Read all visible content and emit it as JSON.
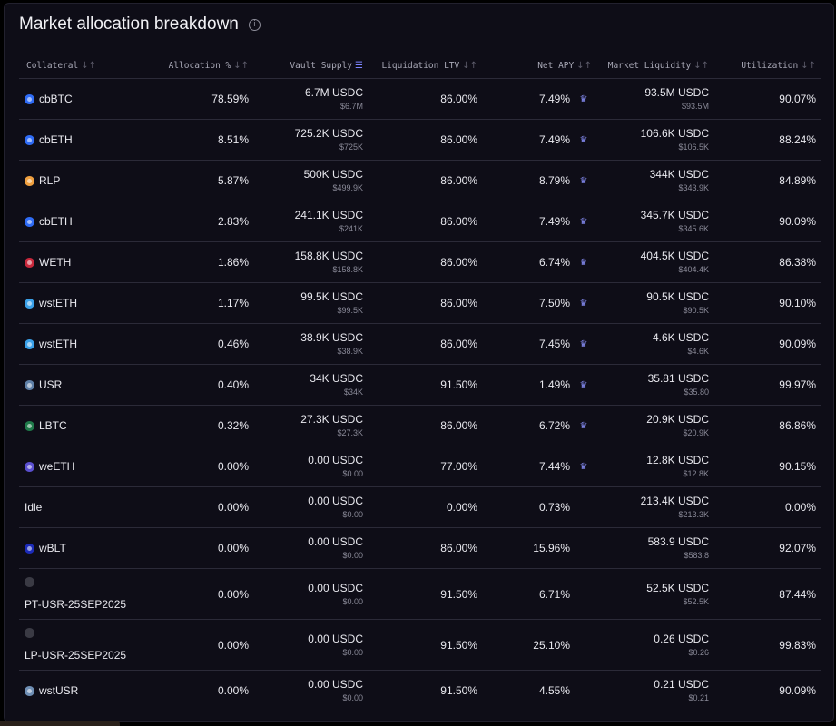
{
  "header": {
    "title": "Market allocation breakdown",
    "info_icon": "info-icon"
  },
  "columns": [
    {
      "label": "Collateral"
    },
    {
      "label": "Allocation %"
    },
    {
      "label": "Vault Supply"
    },
    {
      "label": "Liquidation LTV"
    },
    {
      "label": "Net APY"
    },
    {
      "label": "Market Liquidity"
    },
    {
      "label": "Utilization"
    }
  ],
  "rows": [
    {
      "collateral": "cbBTC",
      "icon_color": "#2f6cf6",
      "allocation": "78.59%",
      "supply": "6.7M USDC",
      "supply_usd": "$6.7M",
      "ltv": "86.00%",
      "apy": "7.49%",
      "reward": true,
      "liquidity": "93.5M USDC",
      "liquidity_usd": "$93.5M",
      "utilization": "90.07%"
    },
    {
      "collateral": "cbETH",
      "icon_color": "#2f6cf6",
      "allocation": "8.51%",
      "supply": "725.2K USDC",
      "supply_usd": "$725K",
      "ltv": "86.00%",
      "apy": "7.49%",
      "reward": true,
      "liquidity": "106.6K USDC",
      "liquidity_usd": "$106.5K",
      "utilization": "88.24%"
    },
    {
      "collateral": "RLP",
      "icon_color": "#f0a040",
      "allocation": "5.87%",
      "supply": "500K USDC",
      "supply_usd": "$499.9K",
      "ltv": "86.00%",
      "apy": "8.79%",
      "reward": true,
      "liquidity": "344K USDC",
      "liquidity_usd": "$343.9K",
      "utilization": "84.89%"
    },
    {
      "collateral": "cbETH",
      "icon_color": "#2f6cf6",
      "allocation": "2.83%",
      "supply": "241.1K USDC",
      "supply_usd": "$241K",
      "ltv": "86.00%",
      "apy": "7.49%",
      "reward": true,
      "liquidity": "345.7K USDC",
      "liquidity_usd": "$345.6K",
      "utilization": "90.09%"
    },
    {
      "collateral": "WETH",
      "icon_color": "#c8283c",
      "allocation": "1.86%",
      "supply": "158.8K USDC",
      "supply_usd": "$158.8K",
      "ltv": "86.00%",
      "apy": "6.74%",
      "reward": true,
      "liquidity": "404.5K USDC",
      "liquidity_usd": "$404.4K",
      "utilization": "86.38%"
    },
    {
      "collateral": "wstETH",
      "icon_color": "#3aa0e8",
      "allocation": "1.17%",
      "supply": "99.5K USDC",
      "supply_usd": "$99.5K",
      "ltv": "86.00%",
      "apy": "7.50%",
      "reward": true,
      "liquidity": "90.5K USDC",
      "liquidity_usd": "$90.5K",
      "utilization": "90.10%"
    },
    {
      "collateral": "wstETH",
      "icon_color": "#3aa0e8",
      "allocation": "0.46%",
      "supply": "38.9K USDC",
      "supply_usd": "$38.9K",
      "ltv": "86.00%",
      "apy": "7.45%",
      "reward": true,
      "liquidity": "4.6K USDC",
      "liquidity_usd": "$4.6K",
      "utilization": "90.09%"
    },
    {
      "collateral": "USR",
      "icon_color": "#5e7fa6",
      "allocation": "0.40%",
      "supply": "34K USDC",
      "supply_usd": "$34K",
      "ltv": "91.50%",
      "apy": "1.49%",
      "reward": true,
      "liquidity": "35.81 USDC",
      "liquidity_usd": "$35.80",
      "utilization": "99.97%"
    },
    {
      "collateral": "LBTC",
      "icon_color": "#1f7a4a",
      "allocation": "0.32%",
      "supply": "27.3K USDC",
      "supply_usd": "$27.3K",
      "ltv": "86.00%",
      "apy": "6.72%",
      "reward": true,
      "liquidity": "20.9K USDC",
      "liquidity_usd": "$20.9K",
      "utilization": "86.86%"
    },
    {
      "collateral": "weETH",
      "icon_color": "#5a4fcf",
      "allocation": "0.00%",
      "supply": "0.00 USDC",
      "supply_usd": "$0.00",
      "ltv": "77.00%",
      "apy": "7.44%",
      "reward": true,
      "liquidity": "12.8K USDC",
      "liquidity_usd": "$12.8K",
      "utilization": "90.15%"
    },
    {
      "collateral": "Idle",
      "icon_color": "",
      "allocation": "0.00%",
      "supply": "0.00 USDC",
      "supply_usd": "$0.00",
      "ltv": "0.00%",
      "apy": "0.73%",
      "reward": false,
      "liquidity": "213.4K USDC",
      "liquidity_usd": "$213.3K",
      "utilization": "0.00%"
    },
    {
      "collateral": "wBLT",
      "icon_color": "#1c2bb8",
      "allocation": "0.00%",
      "supply": "0.00 USDC",
      "supply_usd": "$0.00",
      "ltv": "86.00%",
      "apy": "15.96%",
      "reward": false,
      "liquidity": "583.9 USDC",
      "liquidity_usd": "$583.8",
      "utilization": "92.07%"
    },
    {
      "collateral": "PT-USR-25SEP2025",
      "icon_color": "#3a3a44",
      "allocation": "0.00%",
      "supply": "0.00 USDC",
      "supply_usd": "$0.00",
      "ltv": "91.50%",
      "apy": "6.71%",
      "reward": false,
      "liquidity": "52.5K USDC",
      "liquidity_usd": "$52.5K",
      "utilization": "87.44%"
    },
    {
      "collateral": "LP-USR-25SEP2025",
      "icon_color": "#3a3a44",
      "allocation": "0.00%",
      "supply": "0.00 USDC",
      "supply_usd": "$0.00",
      "ltv": "91.50%",
      "apy": "25.10%",
      "reward": false,
      "liquidity": "0.26 USDC",
      "liquidity_usd": "$0.26",
      "utilization": "99.83%"
    },
    {
      "collateral": "wstUSR",
      "icon_color": "#6f8fb5",
      "allocation": "0.00%",
      "supply": "0.00 USDC",
      "supply_usd": "$0.00",
      "ltv": "91.50%",
      "apy": "4.55%",
      "reward": false,
      "liquidity": "0.21 USDC",
      "liquidity_usd": "$0.21",
      "utilization": "90.09%"
    }
  ]
}
